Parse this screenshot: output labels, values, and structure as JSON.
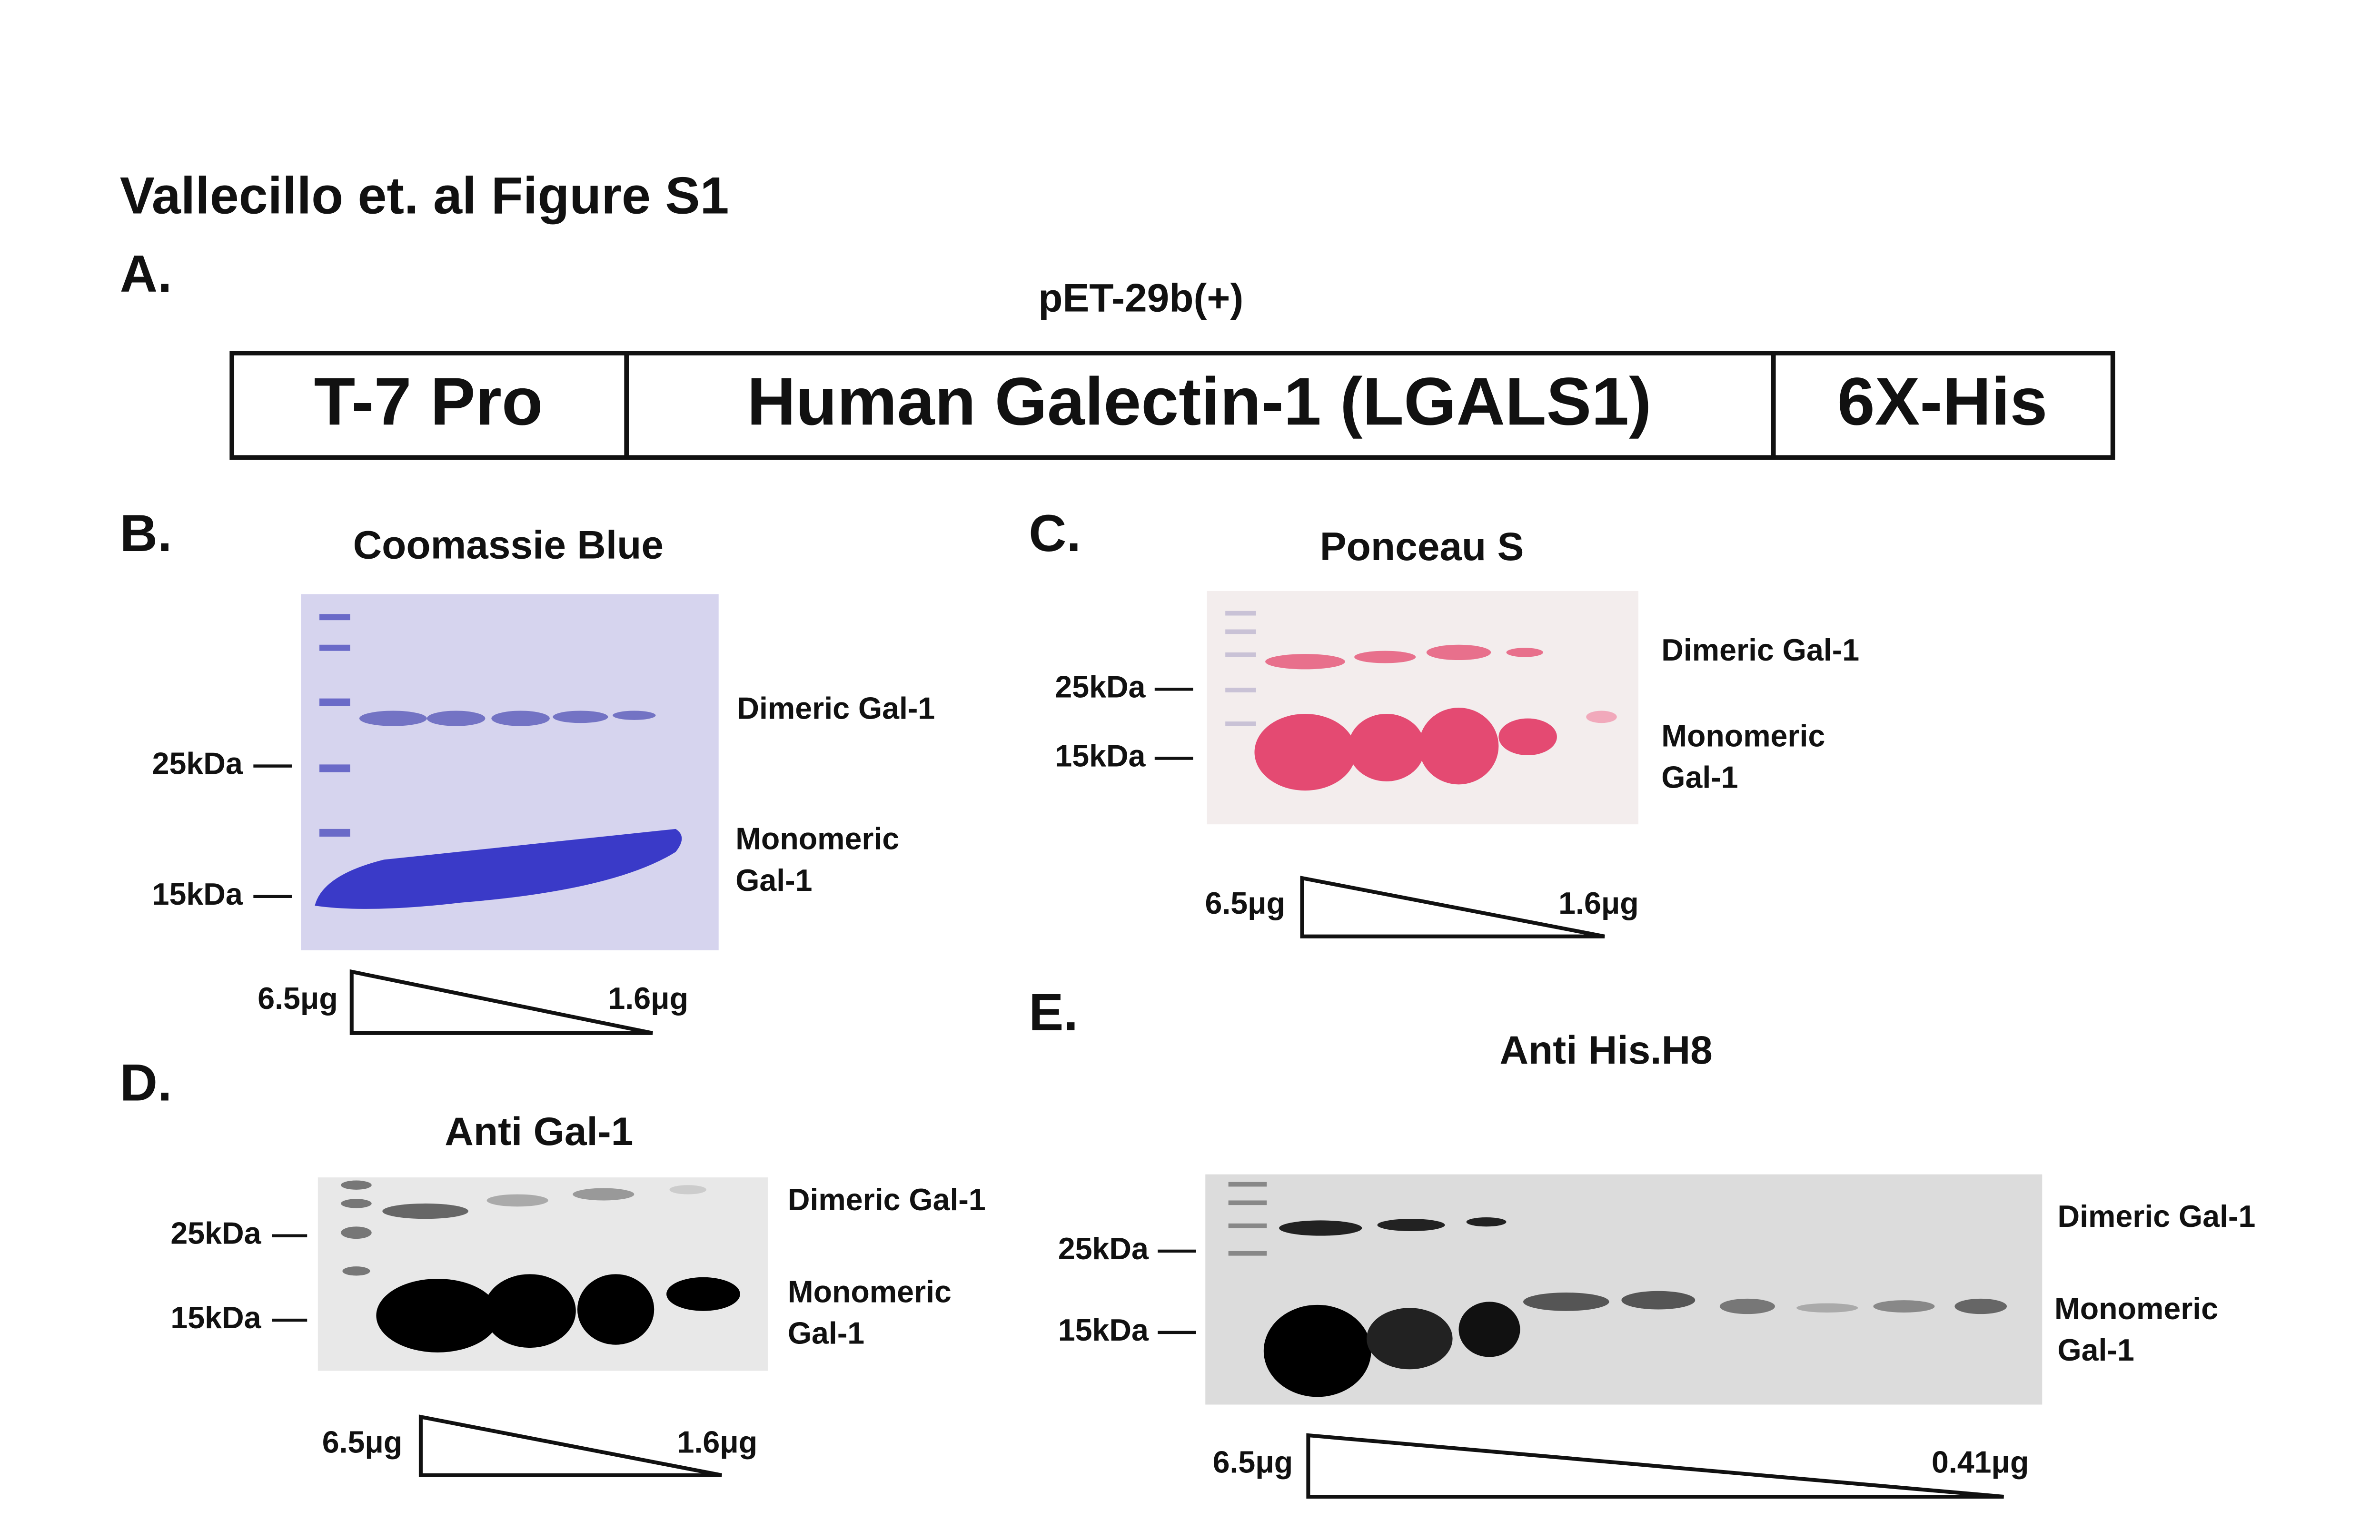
{
  "title": "Vallecillo et. al Figure S1",
  "panels": [
    {
      "label": "A.",
      "title": "pET-29b(+)",
      "segments": [
        "T-7 Pro",
        "Human Galectin-1 (LGALS1)",
        "6X-His"
      ]
    },
    {
      "label": "B.",
      "title": "Coomassie Blue",
      "markers": [
        "25kDa",
        "15kDa"
      ],
      "bands": {
        "dimeric": "Dimeric Gal-1",
        "monomeric": [
          "Monomeric",
          "Gal-1"
        ]
      },
      "amounts": [
        "6.5μg",
        "1.6μg"
      ]
    },
    {
      "label": "C.",
      "title": "Ponceau S",
      "markers": [
        "25kDa",
        "15kDa"
      ],
      "bands": {
        "dimeric": "Dimeric Gal-1",
        "monomeric": [
          "Monomeric",
          "Gal-1"
        ]
      },
      "amounts": [
        "6.5μg",
        "1.6μg"
      ]
    },
    {
      "label": "D.",
      "title": "Anti Gal-1",
      "markers": [
        "25kDa",
        "15kDa"
      ],
      "bands": {
        "dimeric": "Dimeric Gal-1",
        "monomeric": [
          "Monomeric",
          "Gal-1"
        ]
      },
      "amounts": [
        "6.5μg",
        "1.6μg"
      ]
    },
    {
      "label": "E.",
      "title": "Anti His.H8",
      "markers": [
        "25kDa",
        "15kDa"
      ],
      "bands": {
        "dimeric": "Dimeric Gal-1",
        "monomeric": [
          "Monomeric",
          "Gal-1"
        ]
      },
      "amounts": [
        "6.5μg",
        "0.41μg"
      ]
    }
  ]
}
